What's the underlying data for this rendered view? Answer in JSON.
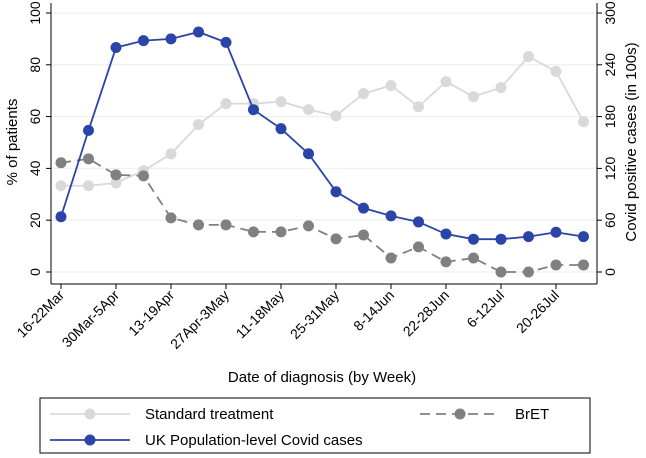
{
  "chart_data": {
    "type": "line",
    "xlabel": "Date of diagnosis (by Week)",
    "ylabel": "% of patients",
    "y2label": "Covid positive cases (in 100s)",
    "ylim": [
      0,
      100
    ],
    "y2lim": [
      0,
      300
    ],
    "yticks": [
      0,
      20,
      40,
      60,
      80,
      100
    ],
    "y2ticks": [
      0,
      60,
      120,
      180,
      240,
      300
    ],
    "grid": true,
    "legend_placement": "bottom",
    "x_tick_labels": [
      "16-22Mar",
      "30Mar-5Apr",
      "13-19Apr",
      "27Apr-3May",
      "11-18May",
      "25-31May",
      "8-14Jun",
      "22-28Jun",
      "6-12Jul",
      "20-26Jul"
    ],
    "n_weeks": 20,
    "series": [
      {
        "name": "Standard treatment",
        "axis": "left",
        "color": "#d9d9d9",
        "dashed": false,
        "values": [
          33.3,
          33.3,
          34.4,
          39.1,
          45.6,
          56.9,
          65.0,
          65.0,
          65.8,
          62.7,
          60.3,
          68.9,
          72.0,
          63.8,
          73.5,
          67.7,
          71.2,
          83.2,
          77.4,
          58.0
        ]
      },
      {
        "name": "BrET",
        "axis": "left",
        "color": "#808080",
        "dashed": true,
        "values": [
          42.2,
          43.7,
          37.5,
          37.1,
          20.9,
          18.2,
          18.2,
          15.5,
          15.5,
          17.8,
          12.8,
          14.3,
          5.4,
          9.7,
          3.9,
          5.4,
          0,
          0,
          2.7,
          2.7
        ]
      },
      {
        "name": "UK Population-level Covid cases",
        "axis": "right",
        "color": "#2b44a8",
        "dashed": false,
        "values": [
          64,
          164,
          260,
          268,
          270,
          278,
          266,
          188,
          166,
          137,
          93,
          74,
          65,
          58,
          44,
          38,
          38,
          41,
          46,
          41
        ]
      }
    ]
  }
}
